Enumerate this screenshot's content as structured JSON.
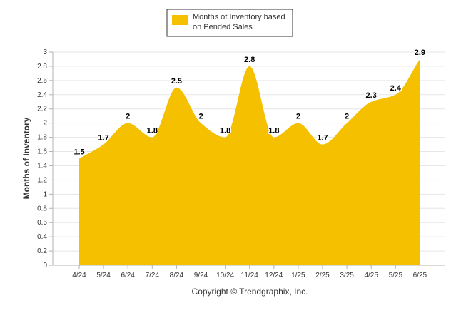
{
  "chart_data": {
    "type": "area",
    "categories": [
      "4/24",
      "5/24",
      "6/24",
      "7/24",
      "8/24",
      "9/24",
      "10/24",
      "11/24",
      "12/24",
      "1/25",
      "2/25",
      "3/25",
      "4/25",
      "5/25",
      "6/25"
    ],
    "series": [
      {
        "name": "Months of Inventory based on Pended Sales",
        "values": [
          1.5,
          1.7,
          2,
          1.8,
          2.5,
          2,
          1.8,
          2.8,
          1.8,
          2,
          1.7,
          2,
          2.3,
          2.4,
          2.9
        ],
        "data_labels": [
          "1.5",
          "1.7",
          "2",
          "1.8",
          "2.5",
          "2",
          "1.8",
          "2.8",
          "1.8",
          "2",
          "1.7",
          "2",
          "2.3",
          "2.4",
          "2.9"
        ]
      }
    ],
    "ylabel": "Months of Inventory",
    "xlabel": "",
    "ylim": [
      0,
      3
    ],
    "y_ticks": [
      "0",
      "0.2",
      "0.4",
      "0.6",
      "0.8",
      "1",
      "1.2",
      "1.4",
      "1.6",
      "1.8",
      "2",
      "2.2",
      "2.4",
      "2.6",
      "2.8",
      "3"
    ],
    "legend": {
      "lines": [
        "Months of Inventory based",
        "on Pended Sales"
      ],
      "placement": "top-center"
    },
    "grid": true,
    "colors": {
      "series": "#f5c000",
      "grid": "#e6e6e6",
      "axis": "#b3b3b3",
      "text": "#333333"
    },
    "footer": "Copyright © Trendgraphix, Inc."
  }
}
